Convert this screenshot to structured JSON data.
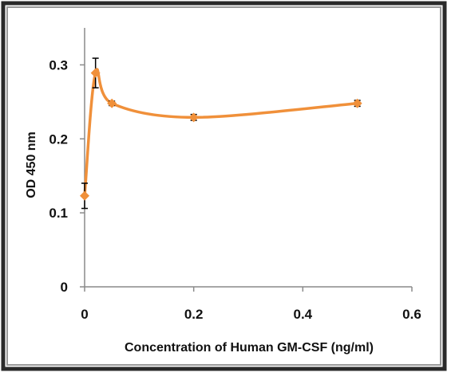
{
  "chart_data": {
    "type": "scatter",
    "title": "",
    "xlabel": "Concentration of Human GM-CSF (ng/ml)",
    "ylabel": "OD 450 nm",
    "xlim": [
      0,
      0.6
    ],
    "ylim": [
      0,
      0.35
    ],
    "xticks": [
      0,
      0.2,
      0.4,
      0.6
    ],
    "xtick_labels": [
      "0",
      "0.2",
      "0.4",
      "0.6"
    ],
    "yticks": [
      0,
      0.1,
      0.2,
      0.3
    ],
    "ytick_labels": [
      "0",
      "0.1",
      "0.2",
      "0.3"
    ],
    "grid": false,
    "legend": "none",
    "smoothed_line": true,
    "series": [
      {
        "x": [
          0,
          0.02,
          0.05,
          0.2,
          0.5
        ],
        "y": [
          0.123,
          0.289,
          0.248,
          0.229,
          0.248
        ],
        "error": [
          0.017,
          0.02,
          0.003,
          0.004,
          0.004
        ],
        "color": "#F0903A",
        "marker": "diamond"
      }
    ]
  }
}
